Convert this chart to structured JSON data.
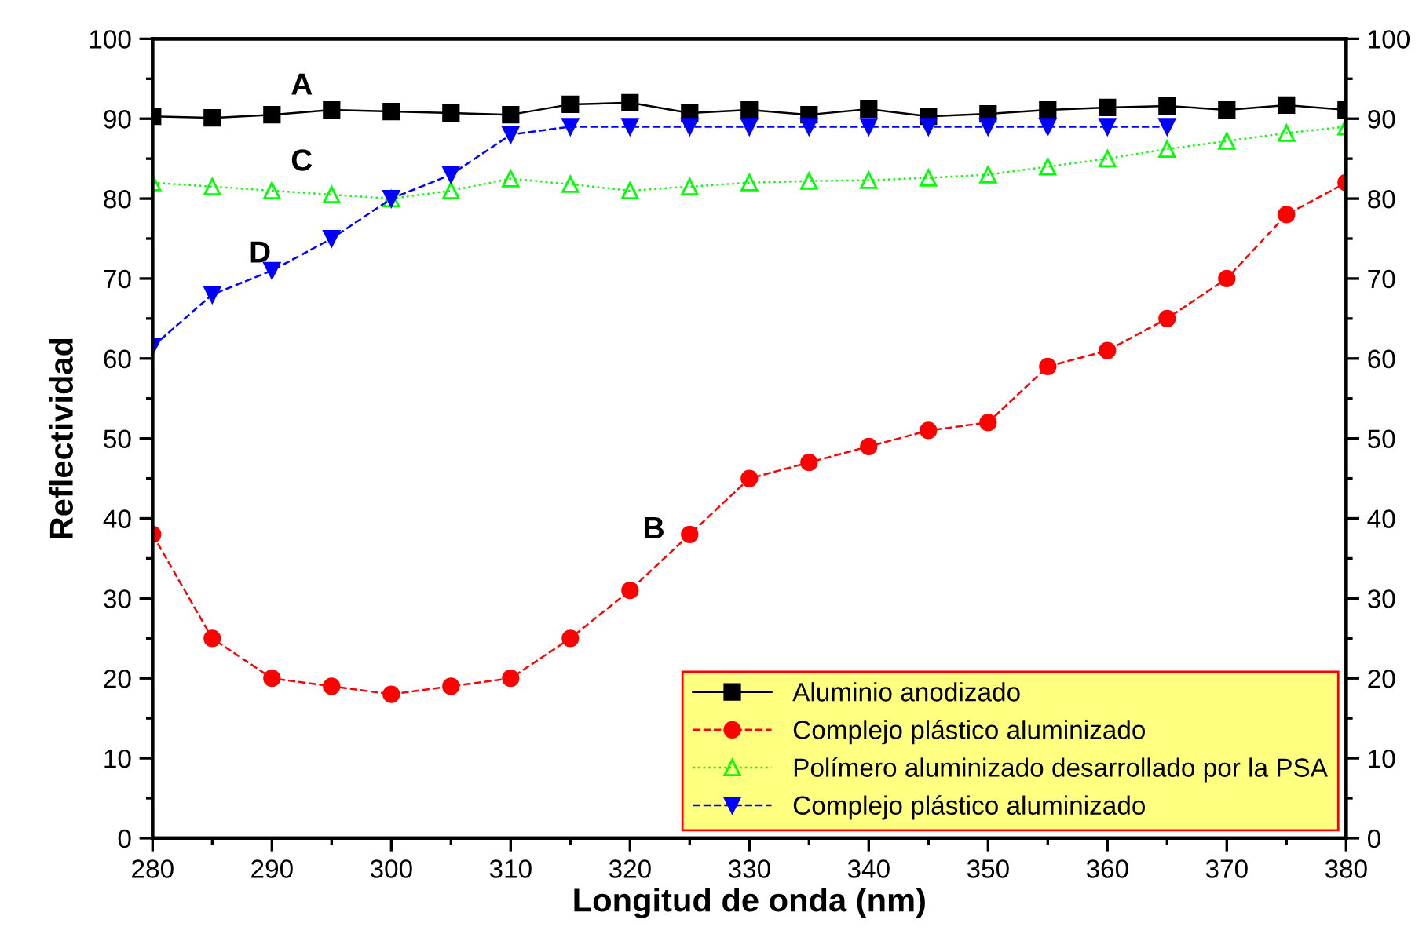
{
  "chart_data": {
    "type": "line",
    "xlabel": "Longitud de onda (nm)",
    "ylabel": "Reflectividad",
    "x": [
      280,
      285,
      290,
      295,
      300,
      305,
      310,
      315,
      320,
      325,
      330,
      335,
      340,
      345,
      350,
      355,
      360,
      365,
      370,
      375,
      380
    ],
    "series": [
      {
        "name": "Aluminio anodizado",
        "color": "#000000",
        "marker": "square",
        "line_style": "solid",
        "values": [
          90.3,
          90.1,
          90.5,
          91.1,
          90.9,
          90.7,
          90.5,
          91.8,
          92,
          90.7,
          91.1,
          90.5,
          91.2,
          90.3,
          90.6,
          91.1,
          91.4,
          91.6,
          91.1,
          91.7,
          91.1
        ]
      },
      {
        "name": "Complejo plástico aluminizado",
        "color": "#ff0000",
        "marker": "circle",
        "line_style": "dashed",
        "values": [
          38,
          25,
          20,
          19,
          18,
          19,
          20,
          25,
          31,
          38,
          45,
          47,
          49,
          51,
          52,
          59,
          61,
          65,
          70,
          78,
          82
        ]
      },
      {
        "name": "Polímero aluminizado desarrollado por la PSA",
        "color": "#00ff00",
        "marker": "triangle",
        "line_style": "dotted",
        "values": [
          82,
          81.5,
          81,
          80.5,
          80,
          81,
          82.5,
          81.8,
          81,
          81.5,
          82,
          82.2,
          82.3,
          82.6,
          83,
          84,
          85,
          86.2,
          87.2,
          88.2,
          89
        ]
      },
      {
        "name": "Complejo plástico aluminizado",
        "color": "#0000ff",
        "marker": "triangle_down",
        "line_style": "dashed",
        "values": [
          61.5,
          68,
          71,
          75,
          80,
          83,
          88,
          89,
          89,
          89,
          89,
          89,
          89,
          89,
          89,
          89,
          89,
          89,
          null,
          null,
          null
        ]
      }
    ],
    "xlim": [
      280,
      380
    ],
    "xticks": [
      280,
      290,
      300,
      310,
      320,
      330,
      340,
      350,
      360,
      370,
      380
    ],
    "ylim": [
      0,
      100
    ],
    "yticks": [
      0,
      10,
      20,
      30,
      40,
      50,
      60,
      70,
      80,
      90,
      100
    ],
    "y2lim": [
      0,
      100
    ],
    "y2ticks": [
      0,
      10,
      20,
      30,
      40,
      50,
      60,
      70,
      80,
      90,
      100
    ],
    "annotations": [
      "A",
      "B",
      "C",
      "D"
    ],
    "legend": "bottom right",
    "grid": false
  }
}
